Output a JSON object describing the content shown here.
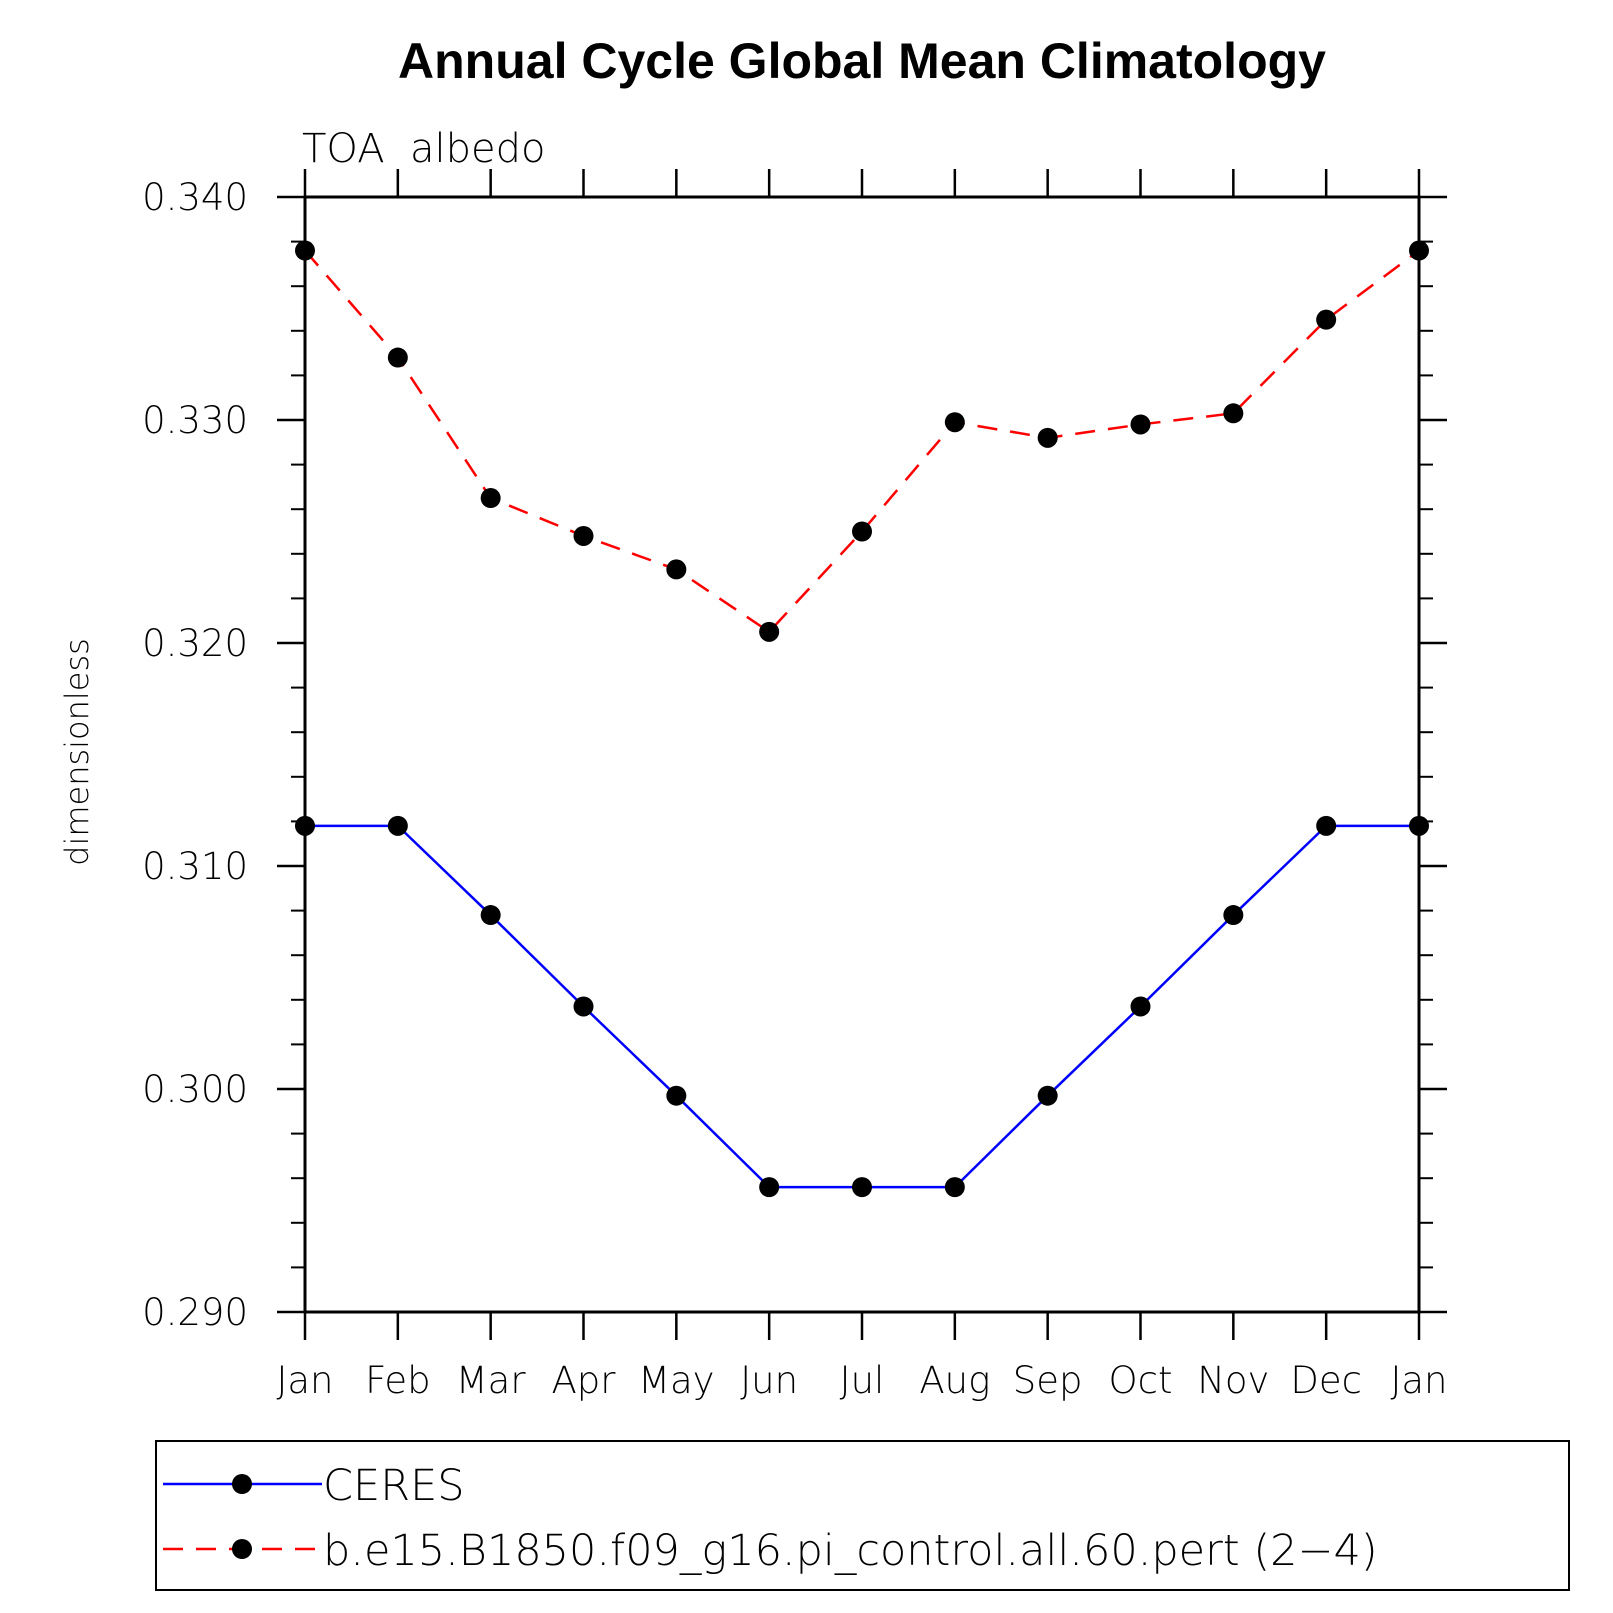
{
  "chart_data": {
    "type": "line",
    "title": "Annual Cycle Global Mean Climatology",
    "subtitle": "TOA  albedo",
    "xlabel": "",
    "ylabel": "dimensionless",
    "categories": [
      "Jan",
      "Feb",
      "Mar",
      "Apr",
      "May",
      "Jun",
      "Jul",
      "Aug",
      "Sep",
      "Oct",
      "Nov",
      "Dec",
      "Jan"
    ],
    "ylim": [
      0.29,
      0.34
    ],
    "yticks": [
      "0.290",
      "0.300",
      "0.310",
      "0.320",
      "0.330",
      "0.340"
    ],
    "ytick_values": [
      0.29,
      0.3,
      0.31,
      0.32,
      0.33,
      0.34
    ],
    "grid": false,
    "legend_position": "bottom",
    "series": [
      {
        "name": "CERES",
        "color": "#0000ff",
        "style": "solid",
        "marker": "filled-circle",
        "values": [
          0.3118,
          0.3118,
          0.3078,
          0.3037,
          0.2997,
          0.2956,
          0.2956,
          0.2956,
          0.2997,
          0.3037,
          0.3078,
          0.3118,
          0.3118
        ]
      },
      {
        "name": "b.e15.B1850.f09_g16.pi_control.all.60.pert (2−4)",
        "color": "#ff0000",
        "style": "dashed",
        "marker": "filled-circle",
        "values": [
          0.3376,
          0.3328,
          0.3265,
          0.3248,
          0.3233,
          0.3205,
          0.325,
          0.3299,
          0.3292,
          0.3298,
          0.3303,
          0.3345,
          0.3376
        ]
      }
    ]
  }
}
